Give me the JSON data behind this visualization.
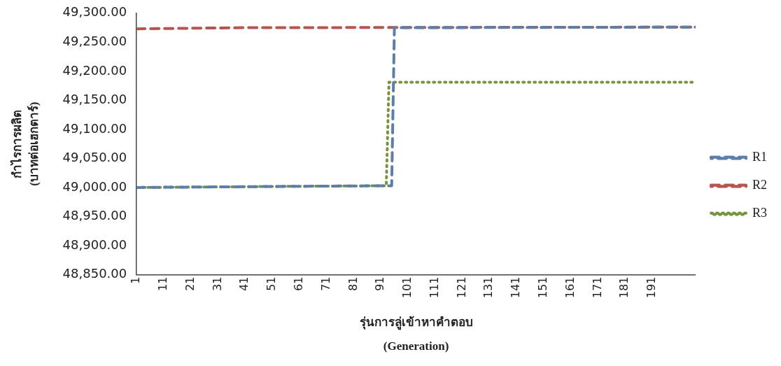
{
  "chart_data": {
    "type": "line",
    "xlabel": "รุ่นการลู่เข้าหาคำตอบ\n(Generation)",
    "ylabel": "กำไรการผลิต\n(บาทต่อเฮกตาร์)",
    "xlim": [
      1,
      207
    ],
    "xticks": [
      1,
      11,
      21,
      31,
      41,
      51,
      61,
      71,
      81,
      91,
      101,
      111,
      121,
      131,
      141,
      151,
      161,
      171,
      181,
      191
    ],
    "ylim": [
      48850,
      49300
    ],
    "yticks": [
      {
        "value": 48850,
        "label": "48,850.00"
      },
      {
        "value": 48900,
        "label": "48,900.00"
      },
      {
        "value": 48950,
        "label": "48,950.00"
      },
      {
        "value": 49000,
        "label": "49,000.00"
      },
      {
        "value": 49050,
        "label": "49,050.00"
      },
      {
        "value": 49100,
        "label": "49,100.00"
      },
      {
        "value": 49150,
        "label": "49,150.00"
      },
      {
        "value": 49200,
        "label": "49,200.00"
      },
      {
        "value": 49250,
        "label": "49,250.00"
      },
      {
        "value": 49300,
        "label": "49,300.00"
      }
    ],
    "grid": false,
    "legend": "right",
    "marker": "none",
    "series": [
      {
        "name": "R1",
        "color": "#5b7fa8",
        "line_style": "dashed",
        "x": [
          1,
          30,
          60,
          95,
          96,
          207
        ],
        "values": [
          49000,
          49001,
          49002,
          49003,
          49275,
          49276
        ]
      },
      {
        "name": "R2",
        "color": "#b9534f",
        "line_style": "dashed",
        "x": [
          1,
          40,
          207
        ],
        "values": [
          49273,
          49275,
          49276
        ]
      },
      {
        "name": "R3",
        "color": "#77933c",
        "line_style": "dotted",
        "x": [
          1,
          30,
          60,
          93,
          94,
          207
        ],
        "values": [
          49000,
          49001,
          49002,
          49003,
          49181,
          49181
        ]
      }
    ]
  }
}
